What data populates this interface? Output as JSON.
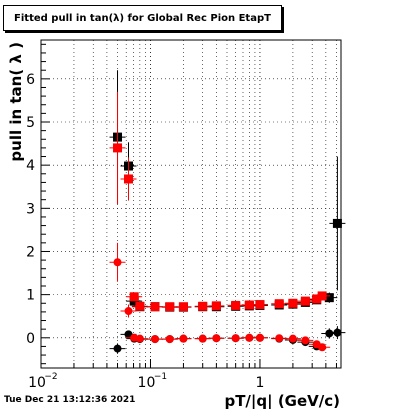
{
  "title": "Fitted pull in tan(λ) for Global Rec Pion EtapT",
  "timestamp": "Tue Dec 21 13:12:36 2021",
  "chart_data": {
    "type": "scatter",
    "xlabel": "pT/|q| (GeV/c)",
    "ylabel": "pull in tan( λ )",
    "xscale": "log",
    "xlim": [
      0.01,
      5.5
    ],
    "ylim": [
      -0.7,
      6.9
    ],
    "xticks": [
      {
        "value": 0.01,
        "label": "10",
        "exp": "−2"
      },
      {
        "value": 0.1,
        "label": "10",
        "exp": "−1"
      },
      {
        "value": 1,
        "label": "1",
        "exp": ""
      }
    ],
    "yticks": [
      0,
      1,
      2,
      3,
      4,
      5,
      6
    ],
    "grid": true,
    "series": [
      {
        "color": "#000000",
        "marker": "square",
        "points": [
          {
            "x": 0.05,
            "y": 4.65,
            "ey": 1.55
          },
          {
            "x": 0.063,
            "y": 3.98,
            "ey": 0.55
          },
          {
            "x": 0.071,
            "y": 0.85,
            "ey": 0.12
          },
          {
            "x": 0.08,
            "y": 0.72,
            "ey": 0.05
          },
          {
            "x": 0.11,
            "y": 0.72,
            "ey": 0.03
          },
          {
            "x": 0.15,
            "y": 0.71,
            "ey": 0.03
          },
          {
            "x": 0.2,
            "y": 0.71,
            "ey": 0.03
          },
          {
            "x": 0.3,
            "y": 0.72,
            "ey": 0.03
          },
          {
            "x": 0.4,
            "y": 0.72,
            "ey": 0.03
          },
          {
            "x": 0.6,
            "y": 0.73,
            "ey": 0.03
          },
          {
            "x": 0.8,
            "y": 0.74,
            "ey": 0.03
          },
          {
            "x": 1.0,
            "y": 0.75,
            "ey": 0.03
          },
          {
            "x": 1.5,
            "y": 0.76,
            "ey": 0.04
          },
          {
            "x": 2.0,
            "y": 0.78,
            "ey": 0.05
          },
          {
            "x": 2.6,
            "y": 0.82,
            "ey": 0.06
          },
          {
            "x": 3.3,
            "y": 0.88,
            "ey": 0.08
          },
          {
            "x": 4.3,
            "y": 0.93,
            "ey": 0.12
          },
          {
            "x": 5.1,
            "y": 2.65,
            "ey": 1.55
          }
        ]
      },
      {
        "color": "#000000",
        "marker": "circle",
        "points": [
          {
            "x": 0.05,
            "y": -0.25,
            "ey": 0.12
          },
          {
            "x": 0.063,
            "y": 0.08,
            "ey": 0.08
          },
          {
            "x": 0.071,
            "y": -0.02,
            "ey": 0.06
          },
          {
            "x": 0.08,
            "y": -0.03,
            "ey": 0.04
          },
          {
            "x": 0.11,
            "y": -0.03,
            "ey": 0.03
          },
          {
            "x": 0.15,
            "y": -0.03,
            "ey": 0.02
          },
          {
            "x": 0.2,
            "y": -0.02,
            "ey": 0.02
          },
          {
            "x": 0.3,
            "y": -0.02,
            "ey": 0.02
          },
          {
            "x": 0.4,
            "y": -0.01,
            "ey": 0.02
          },
          {
            "x": 0.6,
            "y": -0.01,
            "ey": 0.02
          },
          {
            "x": 0.8,
            "y": 0.0,
            "ey": 0.02
          },
          {
            "x": 1.0,
            "y": 0.0,
            "ey": 0.02
          },
          {
            "x": 1.5,
            "y": -0.02,
            "ey": 0.03
          },
          {
            "x": 2.0,
            "y": -0.05,
            "ey": 0.04
          },
          {
            "x": 2.6,
            "y": -0.1,
            "ey": 0.05
          },
          {
            "x": 3.3,
            "y": -0.2,
            "ey": 0.07
          },
          {
            "x": 4.3,
            "y": 0.1,
            "ey": 0.12
          },
          {
            "x": 5.1,
            "y": 0.12,
            "ey": 0.15
          }
        ]
      },
      {
        "color": "#ff0000",
        "marker": "square",
        "points": [
          {
            "x": 0.05,
            "y": 4.4,
            "ey": 1.3
          },
          {
            "x": 0.063,
            "y": 3.68,
            "ey": 0.5
          },
          {
            "x": 0.071,
            "y": 0.95,
            "ey": 0.1
          },
          {
            "x": 0.08,
            "y": 0.73,
            "ey": 0.05
          },
          {
            "x": 0.11,
            "y": 0.72,
            "ey": 0.03
          },
          {
            "x": 0.15,
            "y": 0.72,
            "ey": 0.03
          },
          {
            "x": 0.2,
            "y": 0.72,
            "ey": 0.03
          },
          {
            "x": 0.3,
            "y": 0.73,
            "ey": 0.03
          },
          {
            "x": 0.4,
            "y": 0.74,
            "ey": 0.03
          },
          {
            "x": 0.6,
            "y": 0.75,
            "ey": 0.03
          },
          {
            "x": 0.8,
            "y": 0.76,
            "ey": 0.03
          },
          {
            "x": 1.0,
            "y": 0.77,
            "ey": 0.03
          },
          {
            "x": 1.5,
            "y": 0.79,
            "ey": 0.04
          },
          {
            "x": 2.0,
            "y": 0.8,
            "ey": 0.05
          },
          {
            "x": 2.6,
            "y": 0.85,
            "ey": 0.06
          },
          {
            "x": 3.3,
            "y": 0.9,
            "ey": 0.08
          },
          {
            "x": 3.7,
            "y": 0.97,
            "ey": 0.1
          }
        ]
      },
      {
        "color": "#ff0000",
        "marker": "circle",
        "points": [
          {
            "x": 0.05,
            "y": 1.75,
            "ey": 0.45
          },
          {
            "x": 0.063,
            "y": 0.62,
            "ey": 0.15
          },
          {
            "x": 0.071,
            "y": 0.0,
            "ey": 0.06
          },
          {
            "x": 0.08,
            "y": -0.02,
            "ey": 0.04
          },
          {
            "x": 0.11,
            "y": -0.03,
            "ey": 0.03
          },
          {
            "x": 0.15,
            "y": -0.03,
            "ey": 0.02
          },
          {
            "x": 0.2,
            "y": -0.02,
            "ey": 0.02
          },
          {
            "x": 0.3,
            "y": -0.02,
            "ey": 0.02
          },
          {
            "x": 0.4,
            "y": -0.01,
            "ey": 0.02
          },
          {
            "x": 0.6,
            "y": -0.01,
            "ey": 0.02
          },
          {
            "x": 0.8,
            "y": 0.0,
            "ey": 0.02
          },
          {
            "x": 1.0,
            "y": 0.0,
            "ey": 0.02
          },
          {
            "x": 1.5,
            "y": -0.01,
            "ey": 0.03
          },
          {
            "x": 2.0,
            "y": -0.02,
            "ey": 0.04
          },
          {
            "x": 2.6,
            "y": -0.06,
            "ey": 0.05
          },
          {
            "x": 3.3,
            "y": -0.15,
            "ey": 0.07
          },
          {
            "x": 3.7,
            "y": -0.22,
            "ey": 0.08
          }
        ]
      }
    ]
  }
}
